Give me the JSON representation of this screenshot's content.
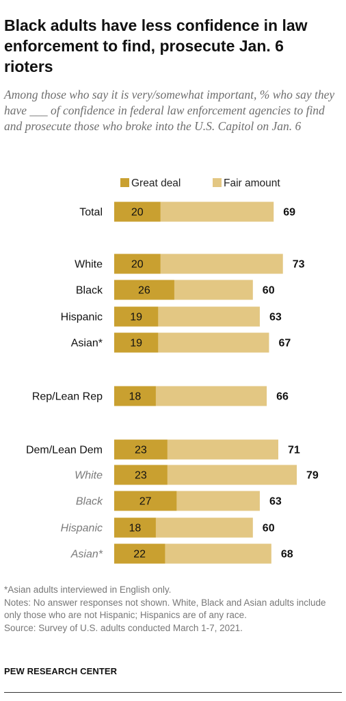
{
  "title": "Black adults have less confidence in law enforcement to find, prosecute Jan. 6 rioters",
  "subtitle": "Among those who say it is very/somewhat important, % who say they have ___ of confidence in federal law enforcement agencies to find and prosecute those who broke into the U.S. Capitol on Jan. 6",
  "notes": {
    "asterisk": "*Asian adults interviewed in English only.",
    "notes": "Notes: No answer responses not shown. White, Black and Asian adults include only those who are not Hispanic; Hispanics are of any race.",
    "source": "Source: Survey of U.S. adults conducted March 1-7, 2021."
  },
  "org": "PEW RESEARCH CENTER",
  "colors": {
    "great_deal": "#c9a030",
    "fair_amount": "#e3c783"
  },
  "chart_data": {
    "type": "bar",
    "orientation": "horizontal",
    "stacked": true,
    "legend": [
      "Great deal",
      "Fair amount"
    ],
    "legend_placement": "top",
    "categories": [
      "Total",
      "White",
      "Black",
      "Hispanic",
      "Asian*",
      "Rep/Lean Rep",
      "Dem/Lean Dem",
      "White",
      "Black",
      "Hispanic",
      "Asian*"
    ],
    "category_style": [
      "normal",
      "normal",
      "normal",
      "normal",
      "normal",
      "normal",
      "normal",
      "italic",
      "italic",
      "italic",
      "italic"
    ],
    "series": [
      {
        "name": "Great deal",
        "values": [
          20,
          20,
          26,
          19,
          19,
          18,
          23,
          23,
          27,
          18,
          22
        ]
      }
    ],
    "net_totals": [
      69,
      73,
      60,
      63,
      67,
      66,
      71,
      79,
      63,
      60,
      68
    ],
    "xlim": [
      0,
      100
    ]
  }
}
